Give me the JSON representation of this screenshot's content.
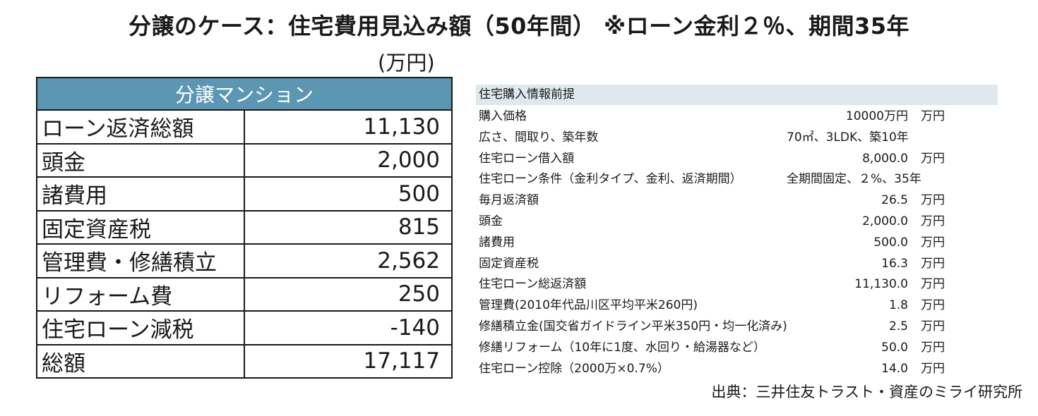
{
  "title": "分譲のケース：住宅費用見込み額（50年間） ※ローン金利２％、期間35年",
  "unit_label": "(万円)",
  "main_table": {
    "header": "分譲マンション",
    "rows": [
      {
        "label": "ローン返済総額",
        "value": "11,130"
      },
      {
        "label": "頭金",
        "value": "2,000"
      },
      {
        "label": "諸費用",
        "value": "500"
      },
      {
        "label": "固定資産税",
        "value": "815"
      },
      {
        "label": "管理費・修繕積立",
        "value": "2,562"
      },
      {
        "label": "リフォーム費",
        "value": "250"
      },
      {
        "label": "住宅ローン減税",
        "value": "-140"
      },
      {
        "label": "総額",
        "value": "17,117"
      }
    ]
  },
  "info": {
    "header": "住宅購入情報前提",
    "rows": [
      {
        "label": "購入価格",
        "value": "10000万円",
        "unit": "万円"
      },
      {
        "label": "広さ、間取り、築年数",
        "value": "70㎡、3LDK、築10年",
        "unit": ""
      },
      {
        "label": "住宅ローン借入額",
        "value": "8,000.0",
        "unit": "万円"
      },
      {
        "label": "住宅ローン条件（金利タイプ、金利、返済期間）",
        "value": "全期間固定、２%、35年",
        "unit": ""
      },
      {
        "label": "毎月返済額",
        "value": "26.5",
        "unit": "万円"
      },
      {
        "label": "頭金",
        "value": "2,000.0",
        "unit": "万円"
      },
      {
        "label": "諸費用",
        "value": "500.0",
        "unit": "万円"
      },
      {
        "label": "固定資産税",
        "value": "16.3",
        "unit": "万円"
      },
      {
        "label": "住宅ローン総返済額",
        "value": "11,130.0",
        "unit": "万円"
      },
      {
        "label": "管理費(2010年代品川区平均平米260円)",
        "value": "1.8",
        "unit": "万円"
      },
      {
        "label": "修繕積立金(国交省ガイドライン平米350円・均一化済み)",
        "value": "2.5",
        "unit": "万円"
      },
      {
        "label": "修繕リフォーム（10年に1度、水回り・給湯器など）",
        "value": "50.0",
        "unit": "万円"
      },
      {
        "label": "住宅ローン控除（2000万×0.7%）",
        "value": "14.0",
        "unit": "万円"
      }
    ]
  },
  "source": "出典：三井住友トラスト・資産のミライ研究所"
}
